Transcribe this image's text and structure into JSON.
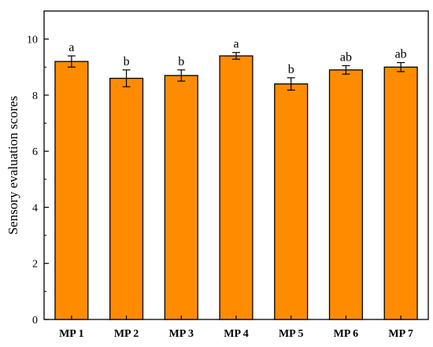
{
  "chart_data": {
    "type": "bar",
    "categories": [
      "MP 1",
      "MP 2",
      "MP 3",
      "MP 4",
      "MP 5",
      "MP 6",
      "MP 7"
    ],
    "values": [
      9.2,
      8.6,
      8.7,
      9.4,
      8.4,
      8.9,
      9.0
    ],
    "errors": [
      0.2,
      0.3,
      0.2,
      0.12,
      0.22,
      0.15,
      0.16
    ],
    "significance": [
      "a",
      "b",
      "b",
      "a",
      "b",
      "ab",
      "ab"
    ],
    "title": "",
    "xlabel": "",
    "ylabel": "Sensory evaluation scores",
    "ylim": [
      0,
      11
    ],
    "yticks": [
      0,
      2,
      4,
      6,
      8,
      10
    ],
    "bar_color": "#FF8C00",
    "grid": false
  }
}
